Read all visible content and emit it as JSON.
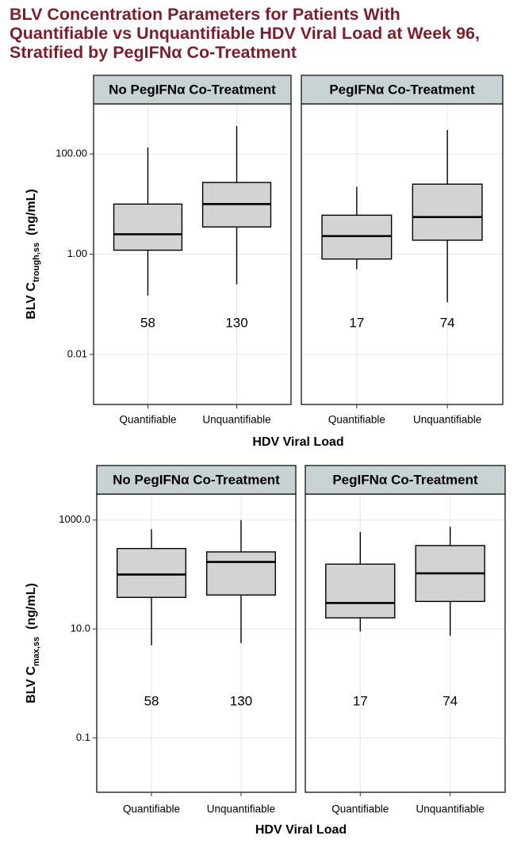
{
  "title_lines": [
    "BLV Concentration Parameters for Patients With",
    "Quantifiable vs Unquantifiable HDV Viral Load at Week 96,",
    "Stratified by PegIFNα Co-Treatment"
  ],
  "colors": {
    "title": "#7a1f2b",
    "strip_fill": "#c8d1d3",
    "box_fill": "#d3d3d3",
    "grid": "#e6e6e6",
    "line": "#000000"
  },
  "chart_data": [
    {
      "type": "boxplot",
      "ylabel_main": "BLV C",
      "ylabel_sub": "trough,ss",
      "ylabel_unit": "(ng/mL)",
      "xlabel": "HDV Viral Load",
      "yscale": "log10",
      "ylim": [
        0.001,
        1000
      ],
      "yticks": [
        0.01,
        1,
        100
      ],
      "ytick_labels": [
        "0.01",
        "1.00",
        "100.00"
      ],
      "grid": true,
      "categories": [
        "Quantifiable",
        "Unquantifiable"
      ],
      "panels": [
        {
          "label": "No PegIFNα Co-Treatment",
          "boxes": [
            {
              "category": "Quantifiable",
              "whisker_low": 0.15,
              "q1": 1.2,
              "median": 2.5,
              "q3": 10,
              "whisker_high": 135,
              "n": "58"
            },
            {
              "category": "Unquantifiable",
              "whisker_low": 0.25,
              "q1": 3.5,
              "median": 10,
              "q3": 27,
              "whisker_high": 360,
              "n": "130"
            }
          ]
        },
        {
          "label": "PegIFNα Co-Treatment",
          "boxes": [
            {
              "category": "Quantifiable",
              "whisker_low": 0.5,
              "q1": 0.8,
              "median": 2.3,
              "q3": 6,
              "whisker_high": 22,
              "n": "17"
            },
            {
              "category": "Unquantifiable",
              "whisker_low": 0.11,
              "q1": 1.9,
              "median": 5.5,
              "q3": 25,
              "whisker_high": 300,
              "n": "74"
            }
          ]
        }
      ]
    },
    {
      "type": "boxplot",
      "ylabel_main": "BLV C",
      "ylabel_sub": "max,ss",
      "ylabel_unit": "(ng/mL)",
      "xlabel": "HDV Viral Load",
      "yscale": "log10",
      "ylim": [
        0.01,
        3000
      ],
      "yticks": [
        0.1,
        10,
        1000
      ],
      "ytick_labels": [
        "0.1",
        "10.0",
        "1000.0"
      ],
      "grid": true,
      "categories": [
        "Quantifiable",
        "Unquantifiable"
      ],
      "panels": [
        {
          "label": "No PegIFNα Co-Treatment",
          "boxes": [
            {
              "category": "Quantifiable",
              "whisker_low": 5,
              "q1": 38,
              "median": 100,
              "q3": 300,
              "whisker_high": 680,
              "n": "58"
            },
            {
              "category": "Unquantifiable",
              "whisker_low": 5.5,
              "q1": 42,
              "median": 170,
              "q3": 260,
              "whisker_high": 1000,
              "n": "130"
            }
          ]
        },
        {
          "label": "PegIFNα Co-Treatment",
          "boxes": [
            {
              "category": "Quantifiable",
              "whisker_low": 9,
              "q1": 16,
              "median": 30,
              "q3": 155,
              "whisker_high": 600,
              "n": "17"
            },
            {
              "category": "Unquantifiable",
              "whisker_low": 7.5,
              "q1": 32,
              "median": 105,
              "q3": 340,
              "whisker_high": 750,
              "n": "74"
            }
          ]
        }
      ]
    }
  ]
}
